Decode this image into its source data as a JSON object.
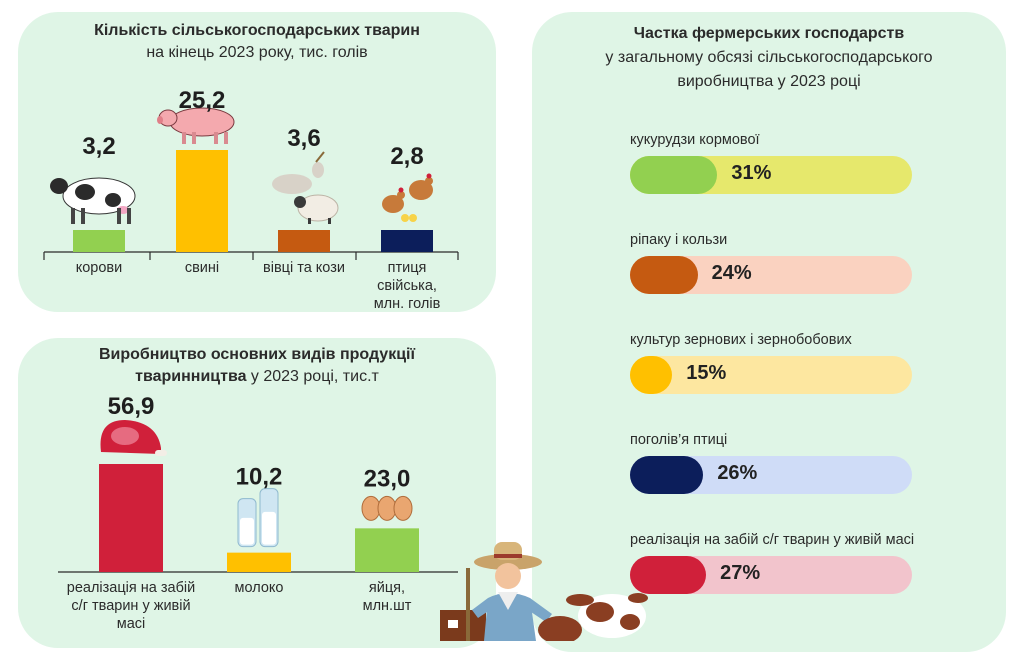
{
  "livestock": {
    "title_bold": "Кількість сільськогосподарських тварин",
    "subtitle": "на кінець 2023 року, тис. голів"
  },
  "production": {
    "title_bold_1": "Виробництво основних видів продукції",
    "title_bold_2": "тваринництва",
    "title_rest": " у 2023 році, тис.т"
  },
  "shares": {
    "title_bold": "Частка фермерських господарств",
    "subtitle_1": "у загальному обсязі сільськогосподарського",
    "subtitle_2": "виробництва у 2023 році",
    "items": [
      {
        "label": "кукурудзи кормової",
        "value_text": "31%",
        "value": 31,
        "fill": "#92d050",
        "track": "#e6e86c"
      },
      {
        "label": "ріпаку і кользи",
        "value_text": "24%",
        "value": 24,
        "fill": "#c55a11",
        "track": "#fad2c0"
      },
      {
        "label": "культур зернових і зернобобових",
        "value_text": "15%",
        "value": 15,
        "fill": "#ffc000",
        "track": "#fde7a0"
      },
      {
        "label": "поголів’я птиці",
        "value_text": "26%",
        "value": 26,
        "fill": "#0c1e5b",
        "track": "#cfdcf7"
      },
      {
        "label": "реалізація на забій с/г тварин у живій масі",
        "value_text": "27%",
        "value": 27,
        "fill": "#d0203a",
        "track": "#f2c4cc"
      }
    ]
  },
  "chart_data": [
    {
      "type": "bar",
      "title": "Кількість сільськогосподарських тварин на кінець 2023 року, тис. голів",
      "categories": [
        "корови",
        "свині",
        "вівці та кози",
        "птиця свійська, млн. голів"
      ],
      "category_lines": [
        [
          "корови"
        ],
        [
          "свині"
        ],
        [
          "вівці та кози"
        ],
        [
          "птиця",
          "свійська,",
          "млн. голів"
        ]
      ],
      "values": [
        3.2,
        25.2,
        3.6,
        2.8
      ],
      "value_labels": [
        "3,2",
        "25,2",
        "3,6",
        "2,8"
      ],
      "colors": [
        "#92d050",
        "#ffc000",
        "#c55a11",
        "#0c1e5b"
      ],
      "icons": [
        "cow-icon",
        "pig-icon",
        "goat-sheep-icon",
        "chicken-icon"
      ]
    },
    {
      "type": "bar",
      "title": "Виробництво основних видів продукції тваринництва у 2023 році, тис.т",
      "categories": [
        "реалізація на забій с/г тварин у живій масі",
        "молоко",
        "яйця, млн.шт"
      ],
      "category_lines": [
        [
          "реалізація на забій",
          "с/г тварин у живій",
          "масі"
        ],
        [
          "молоко"
        ],
        [
          "яйця,",
          "млн.шт"
        ]
      ],
      "values": [
        56.9,
        10.2,
        23.0
      ],
      "value_labels": [
        "56,9",
        "10,2",
        "23,0"
      ],
      "colors": [
        "#d0203a",
        "#ffc000",
        "#92d050"
      ],
      "icons": [
        "meat-icon",
        "milk-icon",
        "eggs-icon"
      ]
    },
    {
      "type": "bar",
      "title": "Частка фермерських господарств у загальному обсязі сільськогосподарського виробництва у 2023 році",
      "categories": [
        "кукурудзи кормової",
        "ріпаку і кользи",
        "культур зернових і зернобобових",
        "поголів’я птиці",
        "реалізація на забій с/г тварин у живій масі"
      ],
      "values": [
        31,
        24,
        15,
        26,
        27
      ],
      "unit": "%"
    }
  ]
}
